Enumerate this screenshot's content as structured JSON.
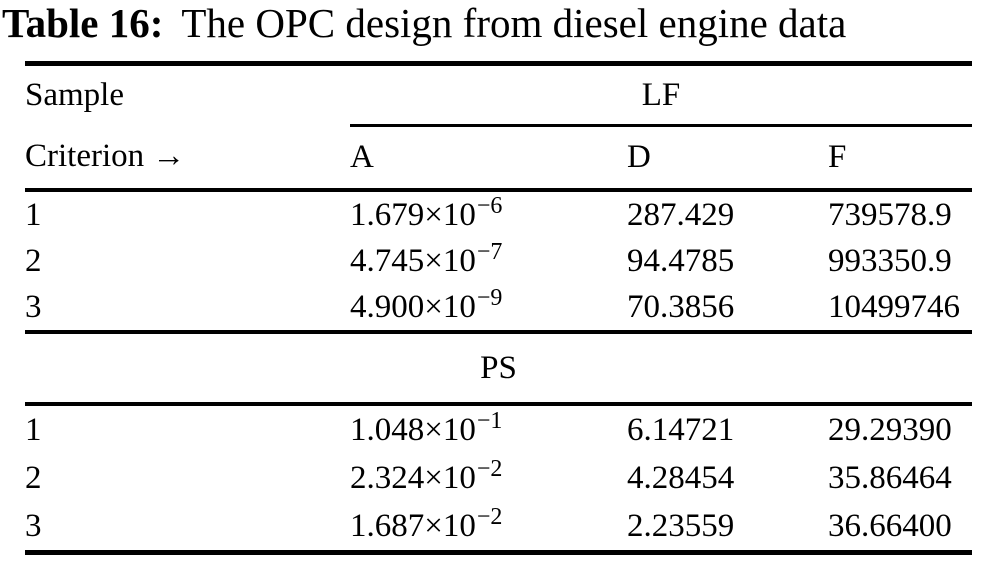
{
  "title": {
    "label": "Table 16:",
    "text": "The OPC design from diesel engine data"
  },
  "colors": {
    "text": "#000000",
    "background": "#ffffff",
    "rule": "#000000"
  },
  "table": {
    "corner_label": "Sample",
    "criterion_label": "Criterion →",
    "column_headers": [
      "A",
      "D",
      "F"
    ],
    "sections": [
      {
        "group_label": "LF",
        "rows": [
          {
            "sample": "1",
            "A": {
              "base": "1.679×10",
              "exp": "−6"
            },
            "D": "287.429",
            "F": "739578.9"
          },
          {
            "sample": "2",
            "A": {
              "base": "4.745×10",
              "exp": "−7"
            },
            "D": "94.4785",
            "F": "993350.9"
          },
          {
            "sample": "3",
            "A": {
              "base": "4.900×10",
              "exp": "−9"
            },
            "D": "70.3856",
            "F": "10499746"
          }
        ]
      },
      {
        "group_label": "PS",
        "rows": [
          {
            "sample": "1",
            "A": {
              "base": "1.048×10",
              "exp": "−1"
            },
            "D": "6.14721",
            "F": "29.29390"
          },
          {
            "sample": "2",
            "A": {
              "base": "2.324×10",
              "exp": "−2"
            },
            "D": "4.28454",
            "F": "35.86464"
          },
          {
            "sample": "3",
            "A": {
              "base": "1.687×10",
              "exp": "−2"
            },
            "D": "2.23559",
            "F": "36.66400"
          }
        ]
      }
    ]
  }
}
